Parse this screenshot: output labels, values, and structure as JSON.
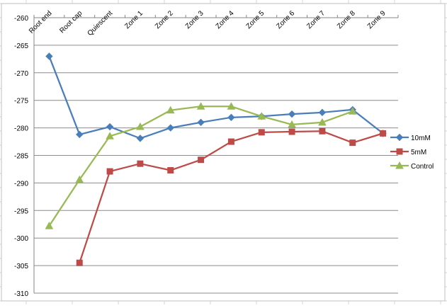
{
  "colors": {
    "grid_sheet": "#d4d4d4",
    "gridline": "#8c8c8c",
    "axis": "#868686",
    "text": "#000000"
  },
  "chart_data": {
    "type": "line",
    "title": "",
    "xlabel": "",
    "ylabel": "",
    "categories": [
      "Root end",
      "Root cap",
      "Quiescent",
      "Zone 1",
      "Zone 2",
      "Zone 3",
      "Zone 4",
      "Zone 5",
      "Zone 6",
      "Zone 7",
      "Zone 8",
      "Zone 9"
    ],
    "ylim": [
      -310,
      -260
    ],
    "yticks": [
      -260,
      -265,
      -270,
      -275,
      -280,
      -285,
      -290,
      -295,
      -300,
      -305,
      -310
    ],
    "x_axis_position": "top",
    "x_tick_rotation": -45,
    "grid": true,
    "legend_position": "right",
    "series": [
      {
        "name": "10mM",
        "color": "#4a7ebb",
        "marker": "diamond",
        "values": [
          -267,
          -281.2,
          -279.8,
          -281.9,
          -280,
          -279,
          -278.1,
          -277.9,
          -277.5,
          -277.2,
          -276.7,
          -281
        ]
      },
      {
        "name": "5mM",
        "color": "#be4b48",
        "marker": "square",
        "values": [
          null,
          -304.5,
          -287.9,
          -286.5,
          -287.7,
          -285.8,
          -282.5,
          -280.8,
          -280.7,
          -280.6,
          -282.7,
          -281
        ]
      },
      {
        "name": "Control",
        "color": "#98b954",
        "marker": "triangle",
        "values": [
          -297.8,
          -289.4,
          -281.5,
          -279.8,
          -276.8,
          -276.1,
          -276.1,
          -277.9,
          -279.4,
          -279,
          -277,
          null
        ]
      }
    ]
  }
}
